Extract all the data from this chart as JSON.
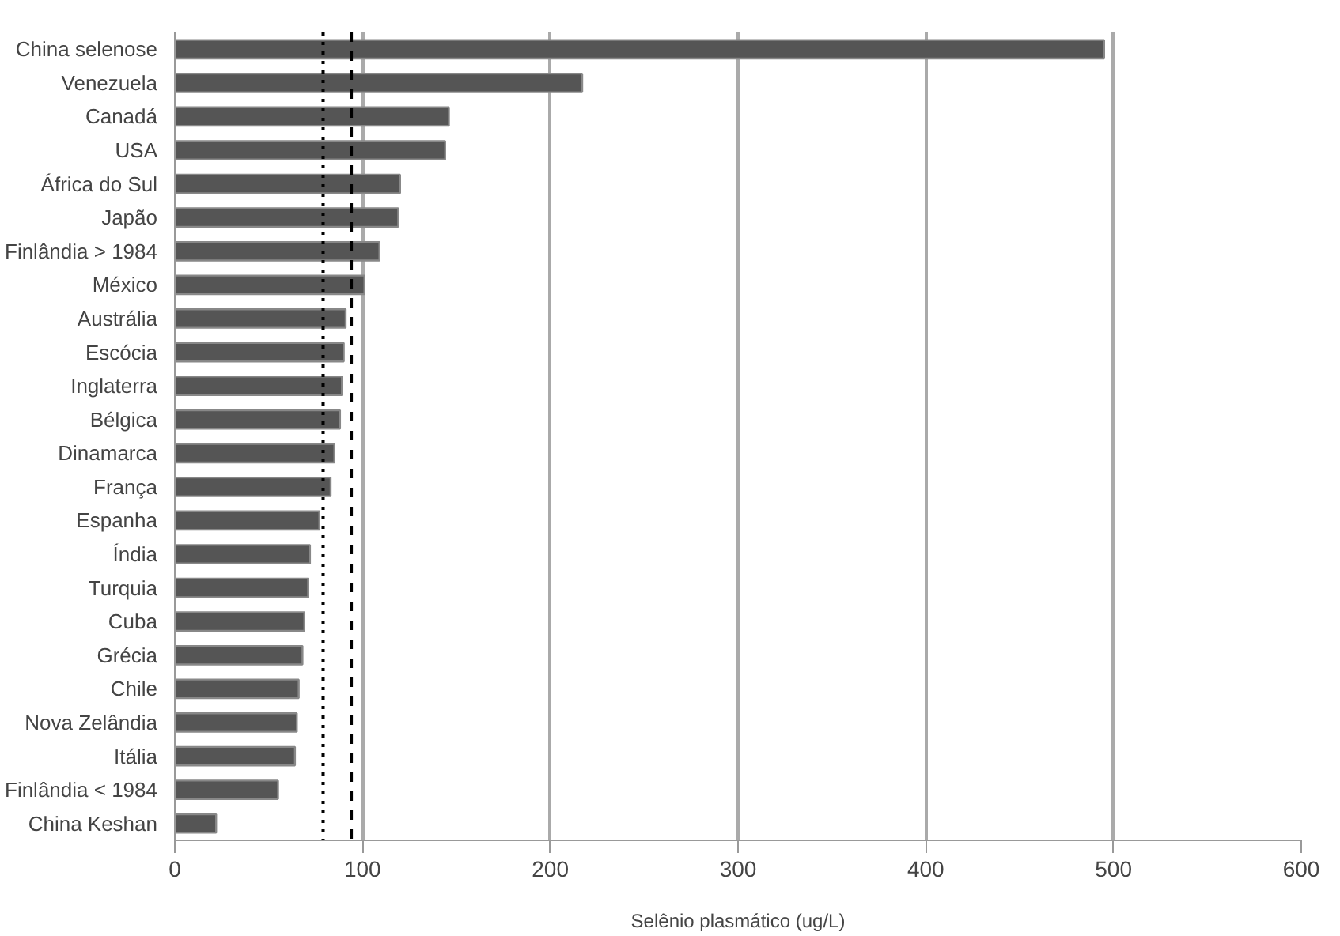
{
  "chart_data": {
    "type": "bar",
    "orientation": "horizontal",
    "xlabel": "Selênio plasmático (ug/L)",
    "categories": [
      "China selenose",
      "Venezuela",
      "Canadá",
      "USA",
      "África do Sul",
      "Japão",
      "Finlândia > 1984",
      "México",
      "Austrália",
      "Escócia",
      "Inglaterra",
      "Bélgica",
      "Dinamarca",
      "França",
      "Espanha",
      "Índia",
      "Turquia",
      "Cuba",
      "Grécia",
      "Chile",
      "Nova Zelândia",
      "Itália",
      "Finlândia < 1984",
      "China Keshan"
    ],
    "values": [
      495,
      217,
      146,
      144,
      120,
      119,
      109,
      101,
      91,
      90,
      89,
      88,
      85,
      83,
      77,
      72,
      71,
      69,
      68,
      66,
      65,
      64,
      55,
      22
    ],
    "color": "#555555",
    "xlim": [
      0,
      600
    ],
    "xticks": [
      0,
      100,
      200,
      300,
      400,
      500,
      600
    ],
    "grid": "x",
    "ref_lines": [
      {
        "axis": "x",
        "value": 79,
        "line_style": "dotted",
        "color": "#000000"
      },
      {
        "axis": "x",
        "value": 94,
        "line_style": "dashed",
        "color": "#000000"
      }
    ]
  }
}
